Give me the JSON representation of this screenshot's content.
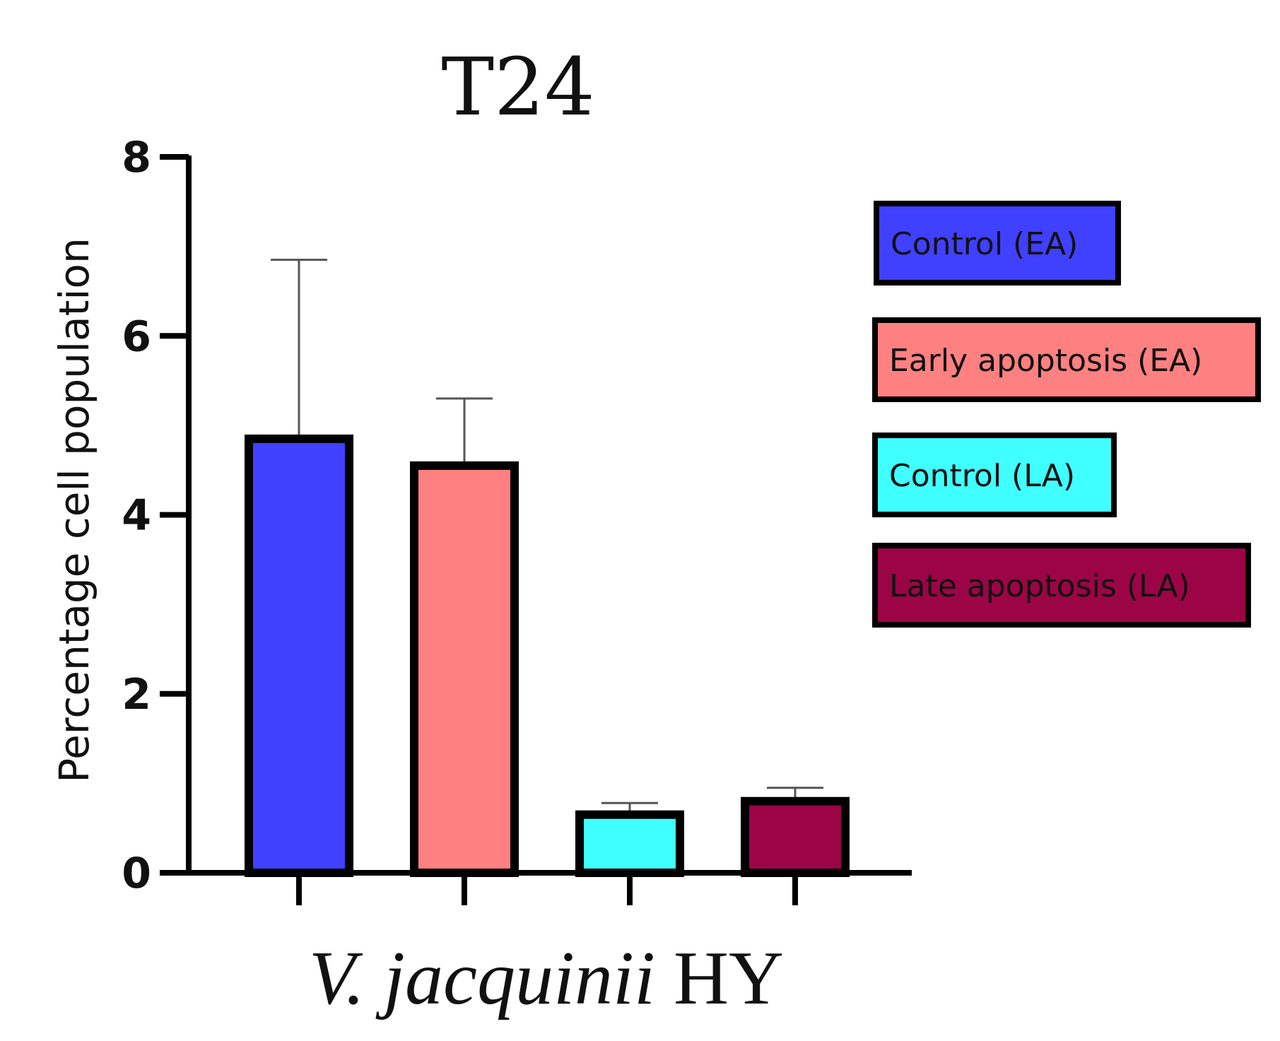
{
  "chart_data": {
    "type": "bar",
    "title": "T24",
    "ylabel": "Percentage cell population",
    "xlabel_italic": "V. jacquinii",
    "xlabel_rest": "HY",
    "ylim": [
      0,
      8
    ],
    "yticks": [
      0,
      2,
      4,
      6,
      8
    ],
    "categories": [
      "Control (EA)",
      "Early apoptosis (EA)",
      "Control (LA)",
      "Late apoptosis (LA)"
    ],
    "values": [
      4.85,
      4.55,
      0.65,
      0.8
    ],
    "errors": [
      2.0,
      0.75,
      0.13,
      0.15
    ],
    "colors": [
      "#4040ff",
      "#ff8080",
      "#40ffff",
      "#9b0545"
    ],
    "legend_position": "right"
  }
}
